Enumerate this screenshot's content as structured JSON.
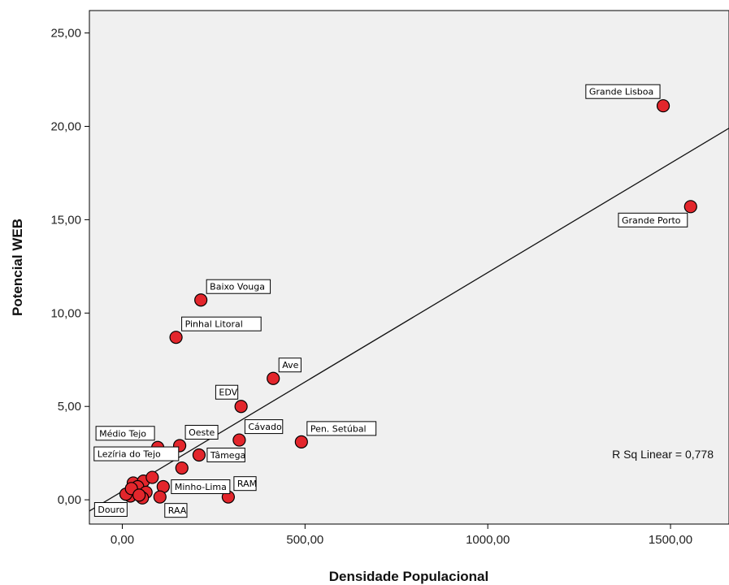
{
  "chart_data": {
    "type": "scatter",
    "title": "",
    "xlabel": "Densidade Populacional",
    "ylabel": "Potencial WEB",
    "xlim": [
      -90,
      1660
    ],
    "ylim": [
      -1.3,
      26.2
    ],
    "x_ticks": [
      0,
      500,
      1000,
      1500
    ],
    "x_tick_labels": [
      "0,00",
      "500,00",
      "1000,00",
      "1500,00"
    ],
    "y_ticks": [
      0,
      5,
      10,
      15,
      20,
      25
    ],
    "y_tick_labels": [
      "0,00",
      "5,00",
      "10,00",
      "15,00",
      "20,00",
      "25,00"
    ],
    "grid": false,
    "plot_background": "#f0f0f0",
    "marker_color": "#e3262c",
    "marker_edge_color": "#000000",
    "fit_line": {
      "type": "linear",
      "x": [
        -90,
        1660
      ],
      "y": [
        -0.6,
        19.9
      ]
    },
    "annotation": "R Sq Linear = 0,778",
    "points": [
      {
        "x": 1480,
        "y": 21.1,
        "label": "Grande Lisboa",
        "label_pos": "nw"
      },
      {
        "x": 1555,
        "y": 15.7,
        "label": "Grande Porto",
        "label_pos": "sw"
      },
      {
        "x": 215,
        "y": 10.7,
        "label": "Baixo Vouga",
        "label_pos": "ne"
      },
      {
        "x": 147,
        "y": 8.7,
        "label": "Pinhal Litoral",
        "label_pos": "ne"
      },
      {
        "x": 413,
        "y": 6.5,
        "label": "Ave",
        "label_pos": "ne"
      },
      {
        "x": 325,
        "y": 5.0,
        "label": "EDV",
        "label_pos": "nw"
      },
      {
        "x": 490,
        "y": 3.1,
        "label": "Pen. Setúbal",
        "label_pos": "ne"
      },
      {
        "x": 320,
        "y": 3.2,
        "label": "Cávado",
        "label_pos": "ne"
      },
      {
        "x": 157,
        "y": 2.9,
        "label": "Oeste",
        "label_pos": "ne"
      },
      {
        "x": 97,
        "y": 2.8,
        "label": "Médio Tejo",
        "label_pos": "nw"
      },
      {
        "x": 210,
        "y": 2.4,
        "label": "Tâmega",
        "label_pos": "e"
      },
      {
        "x": 163,
        "y": 1.7,
        "label": "Lezíria do Tejo",
        "label_pos": "nw"
      },
      {
        "x": 112,
        "y": 0.7,
        "label": "Minho-Lima",
        "label_pos": "e"
      },
      {
        "x": 290,
        "y": 0.15,
        "label": "RAM",
        "label_pos": "ne"
      },
      {
        "x": 103,
        "y": 0.15,
        "label": "RAA",
        "label_pos": "se"
      },
      {
        "x": 22,
        "y": 0.2,
        "label": "Douro",
        "label_pos": "sw"
      },
      {
        "x": 30,
        "y": 0.9,
        "label": "",
        "label_pos": ""
      },
      {
        "x": 58,
        "y": 1.0,
        "label": "",
        "label_pos": ""
      },
      {
        "x": 82,
        "y": 1.2,
        "label": "",
        "label_pos": ""
      },
      {
        "x": 42,
        "y": 0.7,
        "label": "",
        "label_pos": ""
      },
      {
        "x": 65,
        "y": 0.4,
        "label": "",
        "label_pos": ""
      },
      {
        "x": 55,
        "y": 0.1,
        "label": "",
        "label_pos": ""
      },
      {
        "x": 10,
        "y": 0.3,
        "label": "",
        "label_pos": ""
      },
      {
        "x": 25,
        "y": 0.6,
        "label": "",
        "label_pos": ""
      },
      {
        "x": 46,
        "y": 0.25,
        "label": "",
        "label_pos": ""
      }
    ]
  }
}
